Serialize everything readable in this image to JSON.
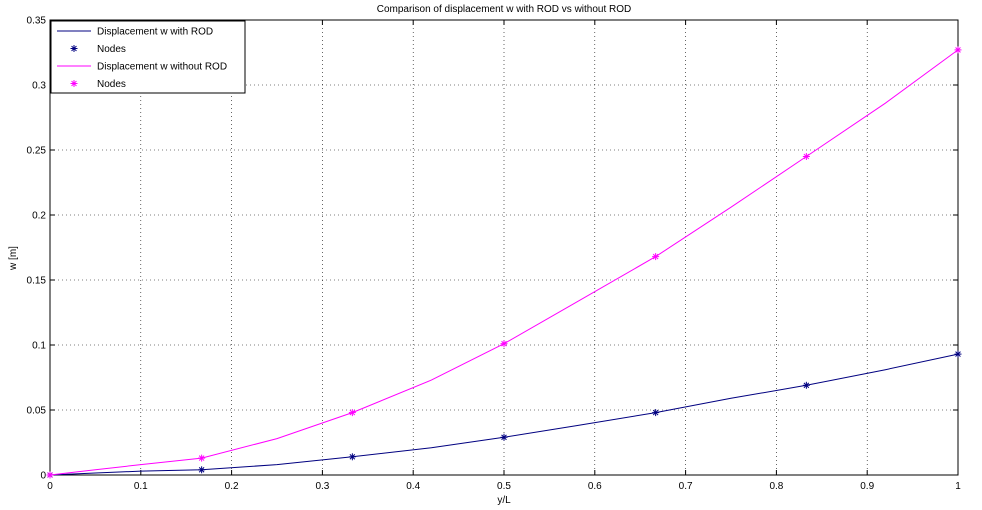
{
  "chart_data": {
    "type": "line",
    "title": "Comparison of displacement w with ROD vs without ROD",
    "xlabel": "y/L",
    "ylabel": "w [m]",
    "xlim": [
      0,
      1
    ],
    "ylim": [
      0,
      0.35
    ],
    "x_ticks": [
      "0",
      "0.1",
      "0.2",
      "0.3",
      "0.4",
      "0.5",
      "0.6",
      "0.7",
      "0.8",
      "0.9",
      "1"
    ],
    "y_ticks": [
      "0",
      "0.05",
      "0.1",
      "0.15",
      "0.2",
      "0.25",
      "0.3",
      "0.35"
    ],
    "grid": true,
    "legend_position": "top-left",
    "series": [
      {
        "name": "Displacement w with ROD",
        "kind": "line",
        "color": "#000080",
        "x": [
          0,
          0.05,
          0.1,
          0.167,
          0.25,
          0.333,
          0.42,
          0.5,
          0.58,
          0.667,
          0.75,
          0.833,
          0.92,
          1.0
        ],
        "y": [
          0,
          0.0015,
          0.003,
          0.004,
          0.008,
          0.014,
          0.021,
          0.029,
          0.038,
          0.048,
          0.059,
          0.069,
          0.081,
          0.093
        ]
      },
      {
        "name": "Nodes",
        "kind": "markers",
        "color": "#000080",
        "x": [
          0,
          0.167,
          0.333,
          0.5,
          0.667,
          0.833,
          1.0
        ],
        "y": [
          0,
          0.004,
          0.014,
          0.029,
          0.048,
          0.069,
          0.093
        ]
      },
      {
        "name": "Displacement w without ROD",
        "kind": "line",
        "color": "#ff00ff",
        "x": [
          0,
          0.05,
          0.1,
          0.167,
          0.25,
          0.333,
          0.42,
          0.5,
          0.58,
          0.667,
          0.75,
          0.833,
          0.92,
          1.0
        ],
        "y": [
          0,
          0.004,
          0.008,
          0.013,
          0.028,
          0.048,
          0.073,
          0.101,
          0.133,
          0.168,
          0.206,
          0.245,
          0.286,
          0.327
        ]
      },
      {
        "name": "Nodes",
        "kind": "markers",
        "color": "#ff00ff",
        "x": [
          0,
          0.167,
          0.333,
          0.5,
          0.667,
          0.833,
          1.0
        ],
        "y": [
          0,
          0.013,
          0.048,
          0.101,
          0.168,
          0.245,
          0.327
        ]
      }
    ]
  }
}
